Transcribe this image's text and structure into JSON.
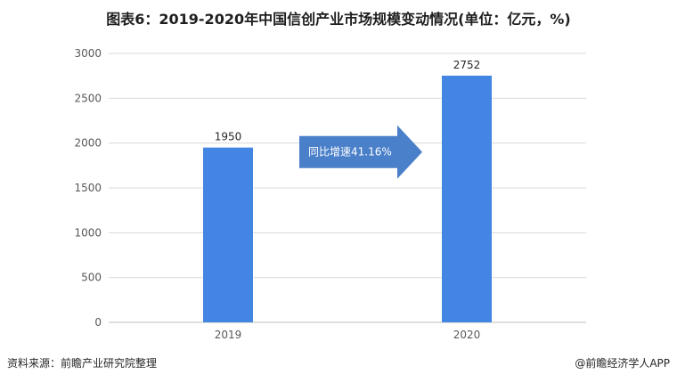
{
  "chart_data": {
    "type": "bar",
    "title": "图表6：2019-2020年中国信创产业市场规模变动情况(单位：亿元，%)",
    "categories": [
      "2019",
      "2020"
    ],
    "values": [
      1950,
      2752
    ],
    "ylim": [
      0,
      3000
    ],
    "yticks": [
      0,
      500,
      1000,
      1500,
      2000,
      2500,
      3000
    ],
    "grid": true,
    "bar_color": "#4385E2",
    "annotation": {
      "text": "同比增速41.16%",
      "color": "#4A7FC9"
    }
  },
  "footer": {
    "source": "资料来源：前瞻产业研究院整理",
    "brand": "@前瞻经济学人APP"
  }
}
